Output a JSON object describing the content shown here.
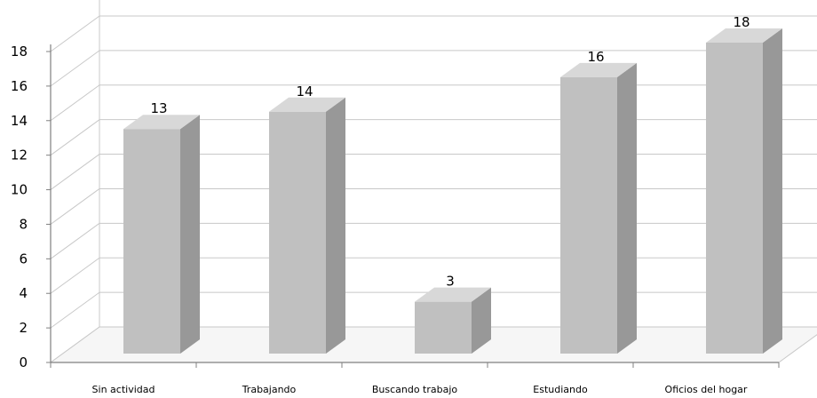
{
  "chart_data": {
    "type": "bar",
    "categories": [
      "Sin actividad",
      "Trabajando",
      "Buscando trabajo",
      "Estudiando",
      "Oficios del hogar"
    ],
    "values": [
      13,
      14,
      3,
      16,
      18
    ],
    "data_labels": [
      "13",
      "14",
      "3",
      "16",
      "18"
    ],
    "y_ticks": [
      "0",
      "2",
      "4",
      "6",
      "8",
      "10",
      "12",
      "14",
      "16",
      "18"
    ],
    "ylim": [
      0,
      18
    ],
    "grid": true,
    "legend": "none",
    "style": "3d-column",
    "colors": {
      "bar_front": "#c0c0c0",
      "bar_side": "#989898",
      "bar_top": "#d8d8d8",
      "grid": "#c8c8c8",
      "axis": "#808080"
    }
  }
}
